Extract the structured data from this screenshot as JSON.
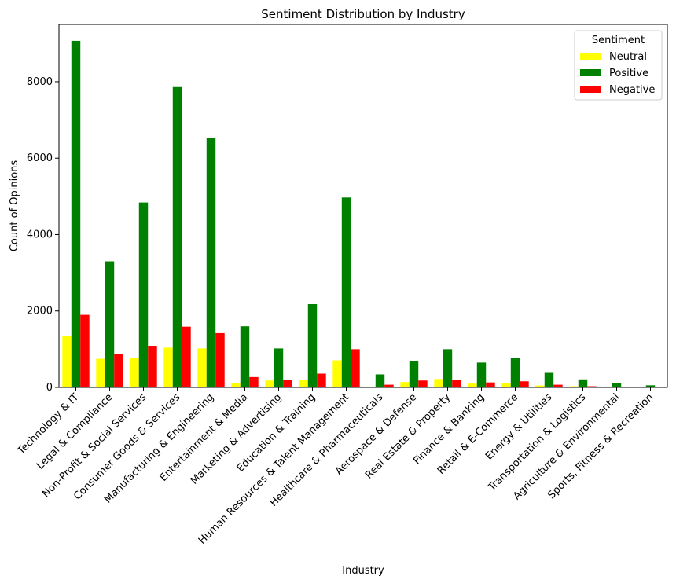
{
  "chart_data": {
    "type": "bar",
    "title": "Sentiment Distribution by Industry",
    "xlabel": "Industry",
    "ylabel": "Count of Opinions",
    "ylim": [
      0,
      9500
    ],
    "yticks": [
      0,
      2000,
      4000,
      6000,
      8000
    ],
    "grid": false,
    "legend": {
      "title": "Sentiment",
      "placement": "top-right"
    },
    "categories": [
      "Technology & IT",
      "Legal & Compliance",
      "Non-Profit & Social Services",
      "Consumer Goods & Services",
      "Manufacturing & Engineering",
      "Entertainment & Media",
      "Marketing & Advertising",
      "Education & Training",
      "Human Resources & Talent Management",
      "Healthcare & Pharmaceuticals",
      "Aerospace & Defense",
      "Real Estate & Property",
      "Finance & Banking",
      "Retail & E-Commerce",
      "Energy & Utilities",
      "Transportation & Logistics",
      "Agriculture & Environmental",
      "Sports, Fitness & Recreation"
    ],
    "series": [
      {
        "name": "Neutral",
        "color": "#ffff00",
        "values": [
          1350,
          750,
          770,
          1040,
          1020,
          120,
          180,
          190,
          710,
          20,
          140,
          220,
          100,
          120,
          50,
          30,
          15,
          5
        ]
      },
      {
        "name": "Positive",
        "color": "#008000",
        "values": [
          9070,
          3300,
          4840,
          7860,
          6520,
          1600,
          1020,
          2180,
          4970,
          340,
          690,
          1000,
          650,
          770,
          380,
          210,
          110,
          55
        ]
      },
      {
        "name": "Negative",
        "color": "#ff0000",
        "values": [
          1900,
          870,
          1090,
          1590,
          1420,
          270,
          190,
          360,
          1000,
          70,
          180,
          200,
          130,
          160,
          70,
          30,
          20,
          5
        ]
      }
    ]
  }
}
